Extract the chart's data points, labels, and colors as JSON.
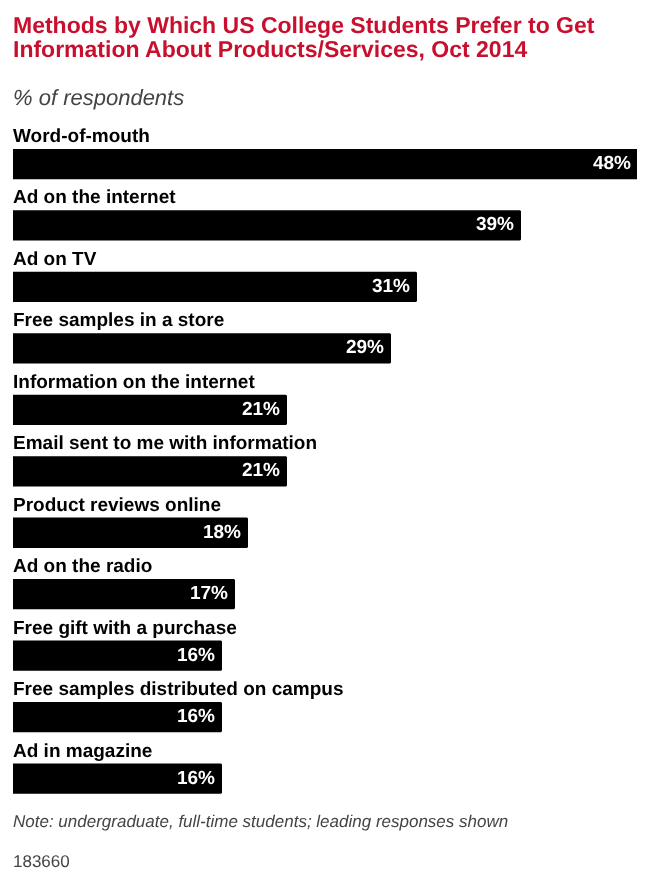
{
  "chart_data": {
    "type": "bar",
    "orientation": "horizontal",
    "title": "Methods by Which US College Students Prefer to Get Information About Products/Services, Oct 2014",
    "subtitle": "% of respondents",
    "categories": [
      "Word-of-mouth",
      "Ad on the internet",
      "Ad on TV",
      "Free samples in a store",
      "Information on the internet",
      "Email sent to me with information",
      "Product reviews online",
      "Ad on the radio",
      "Free gift with a purchase",
      "Free samples distributed on campus",
      "Ad in magazine"
    ],
    "values": [
      48,
      39,
      31,
      29,
      21,
      21,
      18,
      17,
      16,
      16,
      16
    ],
    "value_labels": [
      "48%",
      "39%",
      "31%",
      "29%",
      "21%",
      "21%",
      "18%",
      "17%",
      "16%",
      "16%",
      "16%"
    ],
    "color": "#000000",
    "annotations": [
      "Note: undergraduate, full-time students; leading responses shown",
      "183660"
    ]
  }
}
